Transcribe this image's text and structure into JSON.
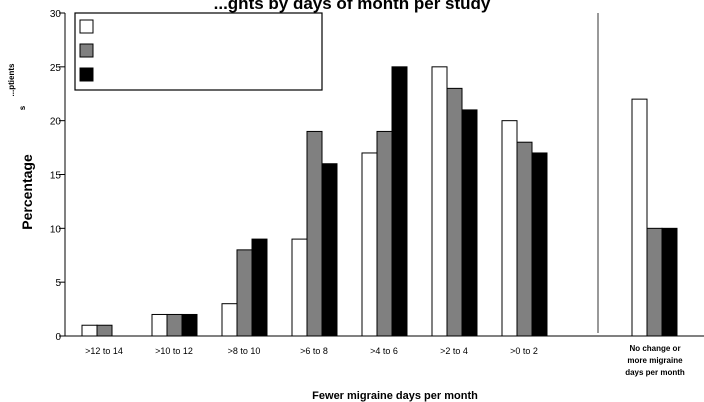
{
  "chart_data": {
    "type": "bar",
    "title": "...ghts by days of month per study",
    "ylabel": "Percentage",
    "ylabel_extra": [
      "...ptients",
      "s"
    ],
    "xlabel": "Fewer migraine days per month",
    "ylim": [
      0,
      30
    ],
    "yticks": [
      "0",
      "5",
      "10",
      "15",
      "20",
      "25",
      "30"
    ],
    "grid": false,
    "legend_position": "top-left",
    "categories": [
      ">12 to 14",
      ">10 to 12",
      ">8 to 10",
      ">6 to 8",
      ">4 to 6",
      ">2 to 4",
      ">0 to 2"
    ],
    "extra_category": [
      "No change or",
      "more migraine",
      "days per month"
    ],
    "series": [
      {
        "color": "#ffffff",
        "values": [
          1,
          2,
          3,
          9,
          17,
          25,
          20
        ],
        "extra_value": 22
      },
      {
        "color": "#808080",
        "values": [
          1,
          2,
          8,
          19,
          19,
          23,
          18
        ],
        "extra_value": 10
      },
      {
        "color": "#000000",
        "values": [
          0,
          2,
          9,
          16,
          25,
          21,
          17
        ],
        "extra_value": 10
      }
    ]
  }
}
